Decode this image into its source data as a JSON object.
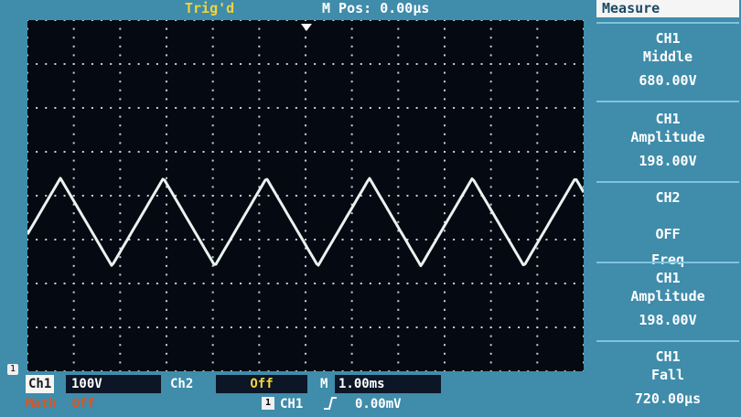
{
  "header": {
    "trigger_status": "Trig'd",
    "m_pos_label": "M Pos:",
    "m_pos_value": "0.00µs"
  },
  "measure": {
    "title": "Measure",
    "panels": [
      {
        "source": "CH1",
        "type": "Middle",
        "value": "680.00V"
      },
      {
        "source": "CH1",
        "type": "Amplitude",
        "value": "198.00V"
      },
      {
        "source": "CH2",
        "state": "OFF",
        "type": "Freq"
      },
      {
        "source": "CH1",
        "type": "Amplitude",
        "value": "198.00V"
      },
      {
        "source": "CH1",
        "type": "Fall",
        "value": "720.00µs"
      }
    ]
  },
  "status_bar": {
    "ch1_label": "Ch1",
    "ch1_scale": "100V",
    "ch2_label": "Ch2",
    "ch2_value": "Off",
    "timebase_label": "M",
    "timebase_value": "1.00ms",
    "math_label": "Math",
    "math_value": "Off",
    "trigger_icon": "1",
    "trigger_source": "CH1",
    "trigger_edge_icon": "rising-edge-icon",
    "trigger_level": "0.00mV"
  },
  "channel_marker": "1",
  "waveform": {
    "shape": "triangle",
    "color": "#e8f4f0",
    "cycles_visible": 5.4,
    "high_div": 3.6,
    "low_div": 5.6,
    "grid_divisions_x": 12,
    "grid_divisions_y": 8
  },
  "colors": {
    "frame": "#3f8cab",
    "screen": "#050a12",
    "trigger_status": "#f3d33a",
    "math": "#e0531f"
  }
}
